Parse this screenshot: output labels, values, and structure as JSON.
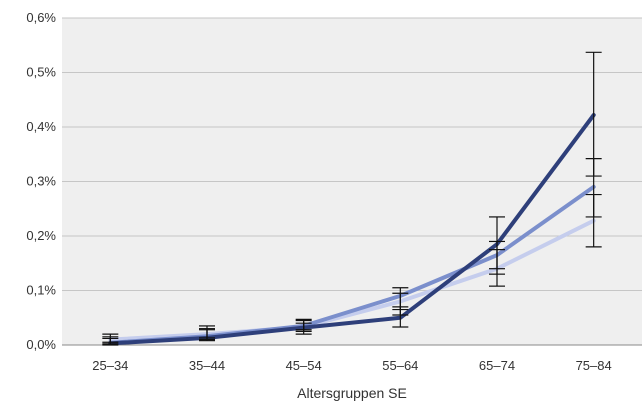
{
  "chart_data": {
    "type": "line",
    "title": "",
    "xlabel": "Altersgruppen SE",
    "ylabel": "",
    "categories": [
      "25–34",
      "35–44",
      "45–54",
      "55–64",
      "65–74",
      "75–84"
    ],
    "yticks": [
      "0,0%",
      "0,1%",
      "0,2%",
      "0,3%",
      "0,4%",
      "0,5%",
      "0,6%"
    ],
    "ylim": [
      0,
      0.6
    ],
    "grid": true,
    "legend": "none",
    "series": [
      {
        "color": "#2e3f7a",
        "values": [
          0.003,
          0.013,
          0.032,
          0.05,
          0.185,
          0.422
        ],
        "err_low": [
          0.0,
          0.008,
          0.02,
          0.033,
          0.14,
          0.31
        ],
        "err_high": [
          0.02,
          0.035,
          0.047,
          0.07,
          0.235,
          0.537
        ]
      },
      {
        "color": "#7b8fcc",
        "values": [
          0.004,
          0.016,
          0.035,
          0.09,
          0.165,
          0.29
        ],
        "err_low": [
          0.002,
          0.01,
          0.025,
          0.065,
          0.13,
          0.235
        ],
        "err_high": [
          0.012,
          0.03,
          0.045,
          0.105,
          0.19,
          0.342
        ]
      },
      {
        "color": "#c5cded",
        "values": [
          0.01,
          0.02,
          0.033,
          0.08,
          0.14,
          0.228
        ],
        "err_low": [
          0.005,
          0.013,
          0.028,
          0.055,
          0.108,
          0.18
        ],
        "err_high": [
          0.015,
          0.028,
          0.04,
          0.095,
          0.175,
          0.276
        ]
      }
    ]
  }
}
